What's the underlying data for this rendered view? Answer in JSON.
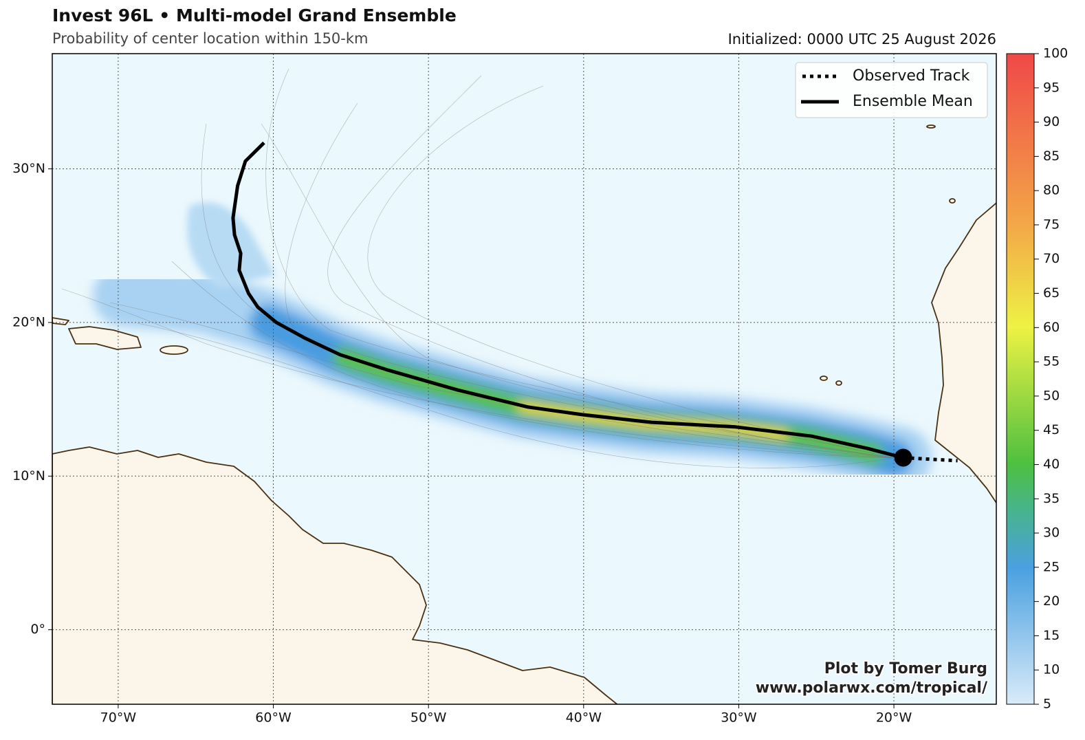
{
  "header": {
    "title": "Invest 96L • Multi-model Grand Ensemble",
    "subtitle": "Probability of center location within 150-km",
    "initialized": "Initialized: 0000 UTC 25 August 2026"
  },
  "map": {
    "lonlim": [
      -74.25,
      -13.4
    ],
    "latlim": [
      -4.85,
      37.5
    ],
    "lon_ticks": [
      {
        "value": -70,
        "label": "70°W"
      },
      {
        "value": -60,
        "label": "60°W"
      },
      {
        "value": -50,
        "label": "50°W"
      },
      {
        "value": -40,
        "label": "40°W"
      },
      {
        "value": -30,
        "label": "30°W"
      },
      {
        "value": -20,
        "label": "20°W"
      }
    ],
    "lat_ticks": [
      {
        "value": 0,
        "label": "0°"
      },
      {
        "value": 10,
        "label": "10°N"
      },
      {
        "value": 20,
        "label": "20°N"
      },
      {
        "value": 30,
        "label": "30°N"
      }
    ],
    "grid": true,
    "observed_track": {
      "name": "Observed Track",
      "color": "#000000",
      "lon": [
        -19.4,
        -15.9
      ],
      "lat": [
        11.2,
        11.0
      ]
    },
    "ensemble_mean": {
      "name": "Ensemble Mean",
      "color": "#000000",
      "lon": [
        -19.4,
        -21.7,
        -25.3,
        -30.2,
        -35.6,
        -40.1,
        -43.6,
        -48.1,
        -52.6,
        -55.7,
        -58.0,
        -59.8,
        -61.0,
        -61.6,
        -62.2,
        -62.1,
        -62.5,
        -62.6,
        -62.3,
        -61.8,
        -60.6
      ],
      "lat": [
        11.2,
        11.8,
        12.6,
        13.2,
        13.5,
        14.0,
        14.5,
        15.6,
        16.9,
        17.9,
        19.0,
        20.0,
        21.0,
        21.9,
        23.4,
        24.5,
        25.7,
        26.8,
        28.9,
        30.5,
        31.7
      ]
    }
  },
  "colorbar": {
    "clim": [
      5,
      100
    ],
    "ticks": [
      5,
      10,
      15,
      20,
      25,
      30,
      35,
      40,
      45,
      50,
      55,
      60,
      65,
      70,
      75,
      80,
      85,
      90,
      95,
      100
    ]
  },
  "credit": {
    "line1": "Plot by Tomer Burg",
    "line2": "www.polarwx.com/tropical/"
  }
}
